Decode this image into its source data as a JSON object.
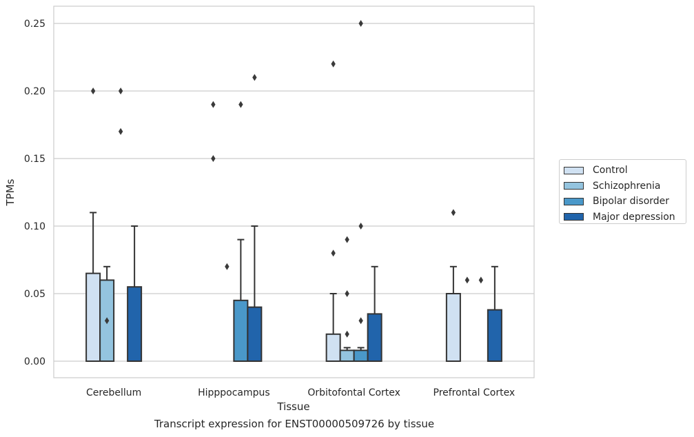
{
  "chart_data": {
    "type": "bar",
    "title": "Transcript expression for ENST00000509726 by tissue",
    "xlabel": "Tissue",
    "ylabel": "TPMs",
    "ylim": [
      -0.012,
      0.263
    ],
    "yticks": [
      0.0,
      0.05,
      0.1,
      0.15,
      0.2,
      0.25
    ],
    "ytick_labels": [
      "0.00",
      "0.05",
      "0.10",
      "0.15",
      "0.20",
      "0.25"
    ],
    "grid": true,
    "legend_position": "right",
    "categories": [
      "Cerebellum",
      "Hipppocampus",
      "Orbitofontal Cortex",
      "Prefrontal Cortex"
    ],
    "series": [
      {
        "name": "Control",
        "color": "#d0e1f2",
        "values": [
          0.065,
          0.0,
          0.02,
          0.05
        ],
        "whisker": [
          0.11,
          null,
          0.05,
          0.07
        ],
        "outliers": [
          [
            0.2
          ],
          [
            0.19,
            0.15
          ],
          [
            0.22,
            0.08
          ],
          [
            0.11
          ]
        ]
      },
      {
        "name": "Schizophrenia",
        "color": "#94c4df",
        "values": [
          0.06,
          0.0,
          0.008,
          0.0
        ],
        "whisker": [
          0.07,
          null,
          0.01,
          null
        ],
        "outliers": [
          [
            0.03
          ],
          [
            0.07
          ],
          [
            0.09,
            0.05,
            0.02
          ],
          [
            0.06
          ]
        ]
      },
      {
        "name": "Bipolar disorder",
        "color": "#4a98c9",
        "values": [
          0.0,
          0.045,
          0.008,
          0.0
        ],
        "whisker": [
          null,
          0.09,
          0.01,
          null
        ],
        "outliers": [
          [
            0.2,
            0.17
          ],
          [
            0.19
          ],
          [
            0.25,
            0.1,
            0.03
          ],
          [
            0.06
          ]
        ]
      },
      {
        "name": "Major depression",
        "color": "#2164ab",
        "values": [
          0.055,
          0.04,
          0.035,
          0.038
        ],
        "whisker": [
          0.1,
          0.1,
          0.07,
          0.07
        ],
        "outliers": [
          [],
          [
            0.21
          ],
          [],
          []
        ]
      }
    ]
  }
}
